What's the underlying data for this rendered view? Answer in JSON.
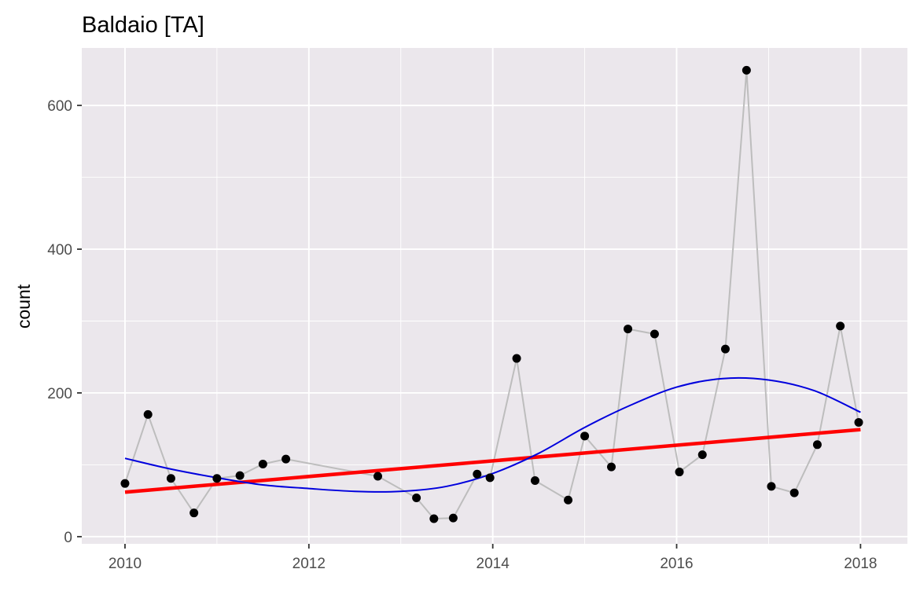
{
  "chart_data": {
    "type": "scatter",
    "title": "Baldaio  [TA]",
    "xlabel": "",
    "ylabel": "count",
    "xlim": [
      2009.53,
      2018.51
    ],
    "ylim": [
      -10,
      680
    ],
    "x_ticks": [
      2010,
      2012,
      2014,
      2016,
      2018
    ],
    "y_ticks": [
      0,
      200,
      400,
      600
    ],
    "grid": true,
    "legend": "none",
    "colors": {
      "panel": "#ebe7ec",
      "grid": "#ffffff",
      "points": "#000000",
      "connector": "#bdbdbd",
      "linear_fit": "#ff0000",
      "smooth_fit": "#0000dd"
    },
    "series": [
      {
        "kind": "observed",
        "x": [
          2010.0,
          2010.25,
          2010.5,
          2010.75,
          2011.0,
          2011.25,
          2011.5,
          2011.75,
          2012.75,
          2013.17,
          2013.36,
          2013.57,
          2013.83,
          2013.97,
          2014.26,
          2014.46,
          2014.82,
          2015.0,
          2015.29,
          2015.47,
          2015.76,
          2016.03,
          2016.28,
          2016.53,
          2016.76,
          2017.03,
          2017.28,
          2017.53,
          2017.78,
          2017.98
        ],
        "y": [
          74,
          170,
          81,
          33,
          81,
          85,
          101,
          108,
          84,
          54,
          25,
          26,
          87,
          82,
          248,
          78,
          51,
          140,
          97,
          289,
          282,
          90,
          114,
          261,
          649,
          70,
          61,
          128,
          293,
          159
        ]
      },
      {
        "kind": "linear-fit",
        "x": [
          2010.0,
          2018.0
        ],
        "y": [
          62,
          149
        ]
      },
      {
        "kind": "smooth-fit",
        "x": [
          2010.0,
          2010.5,
          2011.0,
          2011.5,
          2012.0,
          2012.5,
          2013.0,
          2013.5,
          2014.0,
          2014.5,
          2015.0,
          2015.5,
          2016.0,
          2016.5,
          2017.0,
          2017.5,
          2018.0
        ],
        "y": [
          109,
          94,
          82,
          72,
          67,
          63,
          63,
          70,
          88,
          116,
          152,
          183,
          208,
          220,
          218,
          203,
          173
        ]
      }
    ]
  }
}
